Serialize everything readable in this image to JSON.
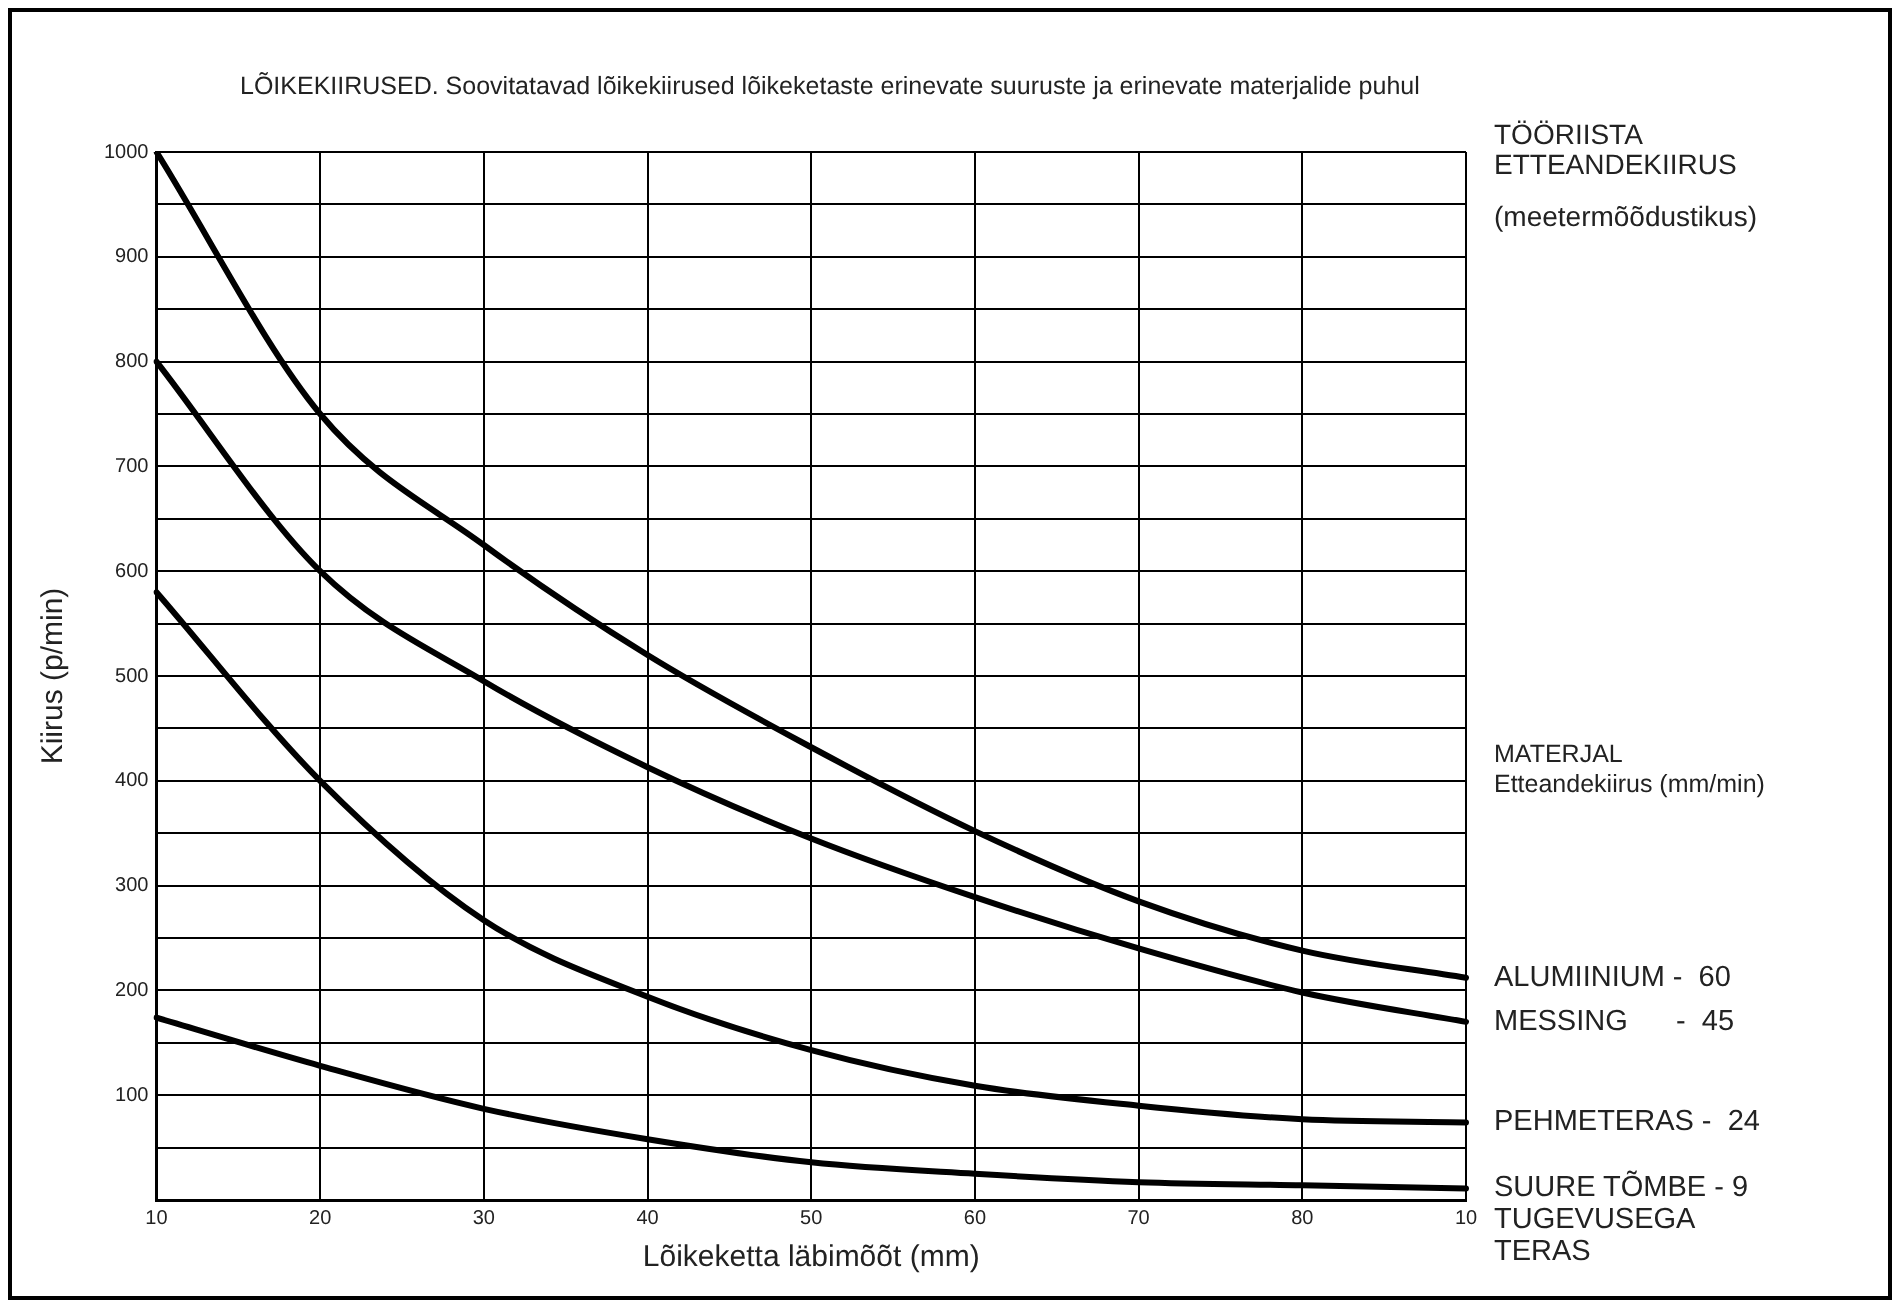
{
  "chart_data": {
    "type": "line",
    "title": "LÕIKEKIIRUSED. Soovitatavad lõikekiirused lõikeketaste erinevate suuruste ja erinevate materjalide puhul",
    "xlabel": "Lõikeketta läbimõõt (mm)",
    "ylabel": "Kiirus (p/min)",
    "annotations": [
      "TÖÖRIISTA ETTEANDEKIIRUS",
      "(meetermõõdustikus)",
      "MATERJAL",
      "Etteandekiirus (mm/min)"
    ],
    "categories": [
      "10",
      "20",
      "30",
      "40",
      "50",
      "60",
      "70",
      "80",
      "10"
    ],
    "series": [
      {
        "name": "ALUMIINIUM -  60",
        "color": "#000000",
        "values": [
          1000,
          750,
          625,
          520,
          432,
          352,
          285,
          238,
          212
        ]
      },
      {
        "name": "MESSING      -  45",
        "color": "#000000",
        "values": [
          800,
          600,
          495,
          413,
          345,
          289,
          240,
          198,
          170
        ]
      },
      {
        "name": "PEHMETERAS -  24",
        "color": "#000000",
        "values": [
          580,
          400,
          267,
          194,
          143,
          109,
          90,
          77,
          74
        ]
      },
      {
        "name": "SUURE TÕMBE - 9 TUGEVUSEGA TERAS",
        "color": "#000000",
        "values": [
          174,
          128,
          87,
          58,
          36,
          25,
          17,
          14,
          11
        ]
      }
    ],
    "ylim": [
      0,
      1000
    ],
    "yticks": [
      {
        "value": 0,
        "label": null
      },
      {
        "value": 50,
        "label": null
      },
      100,
      {
        "value": 150,
        "label": null
      },
      200,
      {
        "value": 250,
        "label": null
      },
      300,
      {
        "value": 350,
        "label": null
      },
      400,
      {
        "value": 450,
        "label": null
      },
      500,
      {
        "value": 550,
        "label": null
      },
      600,
      {
        "value": 650,
        "label": null
      },
      700,
      {
        "value": 750,
        "label": null
      },
      800,
      {
        "value": 850,
        "label": null
      },
      900,
      {
        "value": 950,
        "label": null
      },
      1000
    ],
    "grid": true,
    "marker": "none",
    "line_style": "solid"
  }
}
